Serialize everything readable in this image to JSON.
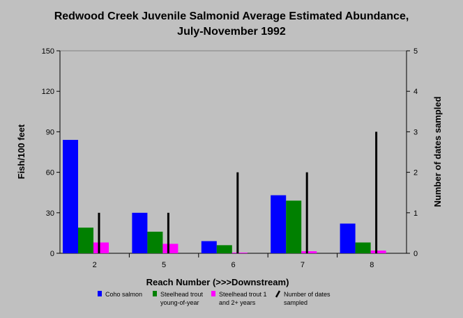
{
  "chart_data": {
    "type": "bar",
    "title_line1": "Redwood Creek Juvenile Salmonid Average Estimated Abundance,",
    "title_line2": "July-November 1992",
    "xlabel": "Reach Number (>>>Downstream)",
    "ylabel_left": "Fish/100 feet",
    "ylabel_right": "Number of dates sampled",
    "categories": [
      "2",
      "5",
      "6",
      "7",
      "8"
    ],
    "ylim_left": [
      0,
      150
    ],
    "yticks_left": [
      "0",
      "30",
      "60",
      "90",
      "120",
      "150"
    ],
    "ylim_right": [
      0,
      5
    ],
    "yticks_right": [
      "0",
      "1",
      "2",
      "3",
      "4",
      "5"
    ],
    "series": [
      {
        "name": "Coho salmon",
        "axis": "left",
        "kind": "bar",
        "color": "#0000ff",
        "values": [
          84,
          30,
          9,
          43,
          22
        ]
      },
      {
        "name": "Steelhead trout young-of-year",
        "name_line1": "Steelhead trout",
        "name_line2": "young-of-year",
        "axis": "left",
        "kind": "bar",
        "color": "#008000",
        "values": [
          19,
          16,
          6,
          39,
          8
        ]
      },
      {
        "name": "Steelhead trout 1 and 2+ years",
        "name_line1": "Steelhead trout 1",
        "name_line2": "and 2+ years",
        "axis": "left",
        "kind": "bar",
        "color": "#ff00ff",
        "values": [
          8,
          7,
          0.5,
          1.5,
          2
        ]
      },
      {
        "name": "Number of dates sampled",
        "name_line1": "Number of dates",
        "name_line2": "sampled",
        "axis": "right",
        "kind": "line-bar",
        "color": "#000000",
        "values": [
          1,
          1,
          2,
          2,
          3
        ]
      }
    ],
    "grid": false,
    "legend_position": "bottom"
  }
}
